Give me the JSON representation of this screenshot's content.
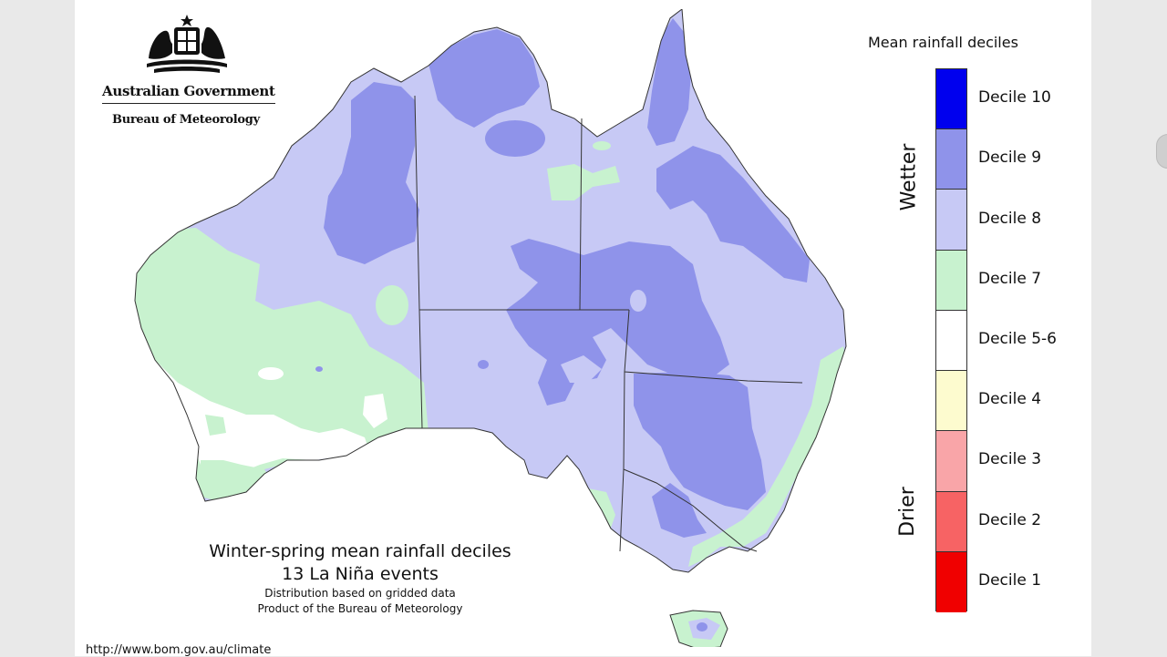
{
  "header": {
    "gov_title": "Australian Government",
    "gov_subtitle": "Bureau of Meteorology"
  },
  "caption": {
    "title": "Winter-spring mean rainfall deciles",
    "subtitle": "13 La Niña events",
    "note_1": "Distribution based on gridded data",
    "note_2": "Product of the Bureau of Meteorology"
  },
  "footer": {
    "url": "http://www.bom.gov.au/climate"
  },
  "legend": {
    "title": "Mean rainfall deciles",
    "wetter_label": "Wetter",
    "drier_label": "Drier",
    "items": [
      {
        "label": "Decile 10",
        "color": "#0000ee"
      },
      {
        "label": "Decile 9",
        "color": "#8f93ea"
      },
      {
        "label": "Decile 8",
        "color": "#c7c9f5"
      },
      {
        "label": "Decile 7",
        "color": "#c8f2cf"
      },
      {
        "label": "Decile 5-6",
        "color": "#ffffff"
      },
      {
        "label": "Decile 4",
        "color": "#fdfbcf"
      },
      {
        "label": "Decile 3",
        "color": "#f9a5a8"
      },
      {
        "label": "Decile 2",
        "color": "#f76364"
      },
      {
        "label": "Decile 1",
        "color": "#f00000"
      }
    ]
  },
  "map_colors": {
    "decile_9": "#8f93ea",
    "decile_8": "#c7c9f5",
    "decile_7": "#c8f2cf",
    "decile_5_6": "#ffffff",
    "outline": "#333333"
  }
}
